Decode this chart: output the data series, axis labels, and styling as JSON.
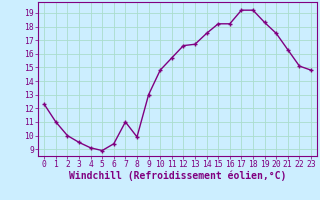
{
  "x": [
    0,
    1,
    2,
    3,
    4,
    5,
    6,
    7,
    8,
    9,
    10,
    11,
    12,
    13,
    14,
    15,
    16,
    17,
    18,
    19,
    20,
    21,
    22,
    23
  ],
  "y": [
    12.3,
    11.0,
    10.0,
    9.5,
    9.1,
    8.9,
    9.4,
    11.0,
    9.9,
    13.0,
    14.8,
    15.7,
    16.6,
    16.7,
    17.5,
    18.2,
    18.2,
    19.2,
    19.2,
    18.3,
    17.5,
    16.3,
    15.1,
    14.8
  ],
  "line_color": "#800080",
  "marker": "+",
  "bg_color": "#cceeff",
  "grid_color": "#aaddcc",
  "xlabel": "Windchill (Refroidissement éolien,°C)",
  "ylim": [
    8.5,
    19.8
  ],
  "xlim": [
    -0.5,
    23.5
  ],
  "yticks": [
    9,
    10,
    11,
    12,
    13,
    14,
    15,
    16,
    17,
    18,
    19
  ],
  "xticks": [
    0,
    1,
    2,
    3,
    4,
    5,
    6,
    7,
    8,
    9,
    10,
    11,
    12,
    13,
    14,
    15,
    16,
    17,
    18,
    19,
    20,
    21,
    22,
    23
  ],
  "tick_label_fontsize": 5.8,
  "xlabel_fontsize": 7.0,
  "line_width": 1.0,
  "marker_size": 3.5
}
